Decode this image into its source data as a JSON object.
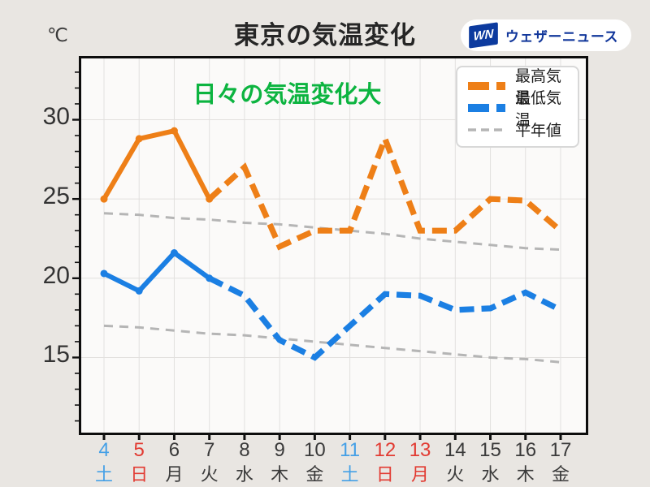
{
  "header": {
    "unit_label": "℃",
    "title": "東京の気温変化",
    "logo": {
      "mark": "WN",
      "name": "ウェザーニュース",
      "mark_bg": "#0c3a9e",
      "text_color": "#12379b"
    }
  },
  "annotation": {
    "text": "日々の気温変化大",
    "color": "#0cb440"
  },
  "legend": [
    {
      "label": "最高気温",
      "color": "#ee7f17",
      "thickness": "thick"
    },
    {
      "label": "最低気温",
      "color": "#1b7fe3",
      "thickness": "thick"
    },
    {
      "label": "平年値",
      "color": "#b5b5b5",
      "thickness": "thin"
    }
  ],
  "chart_data": {
    "type": "line",
    "title": "東京の気温変化",
    "y_unit": "℃",
    "x_dates": [
      4,
      5,
      6,
      7,
      8,
      9,
      10,
      11,
      12,
      13,
      14,
      15,
      16,
      17
    ],
    "x_days": [
      "土",
      "日",
      "月",
      "火",
      "水",
      "木",
      "金",
      "土",
      "日",
      "月",
      "火",
      "水",
      "木",
      "金"
    ],
    "x_day_types": [
      "sat",
      "sun",
      "wd",
      "wd",
      "wd",
      "wd",
      "wd",
      "sat",
      "sun",
      "holiday",
      "wd",
      "wd",
      "wd",
      "wd"
    ],
    "series": [
      {
        "name": "最高気温",
        "role": "temperature",
        "color": "#ee7f17",
        "solid_until_index": 3,
        "values": [
          25.0,
          28.8,
          29.3,
          25.0,
          27.0,
          22.0,
          23.0,
          23.0,
          28.8,
          23.0,
          23.0,
          25.0,
          24.9,
          23.0
        ]
      },
      {
        "name": "最低気温",
        "role": "temperature",
        "color": "#1b7fe3",
        "solid_until_index": 3,
        "values": [
          20.3,
          19.2,
          21.6,
          20.0,
          18.9,
          16.1,
          15.0,
          17.0,
          19.0,
          18.9,
          18.0,
          18.1,
          19.1,
          18.0
        ]
      },
      {
        "name": "平年値",
        "role": "normal",
        "color": "#b5b5b5",
        "values": [
          24.1,
          24.0,
          23.8,
          23.7,
          23.5,
          23.4,
          23.2,
          23.0,
          22.8,
          22.5,
          22.3,
          22.1,
          21.9,
          21.8
        ]
      },
      {
        "name": "平年値",
        "role": "normal",
        "color": "#b5b5b5",
        "values": [
          17.0,
          16.9,
          16.7,
          16.5,
          16.4,
          16.2,
          16.0,
          15.8,
          15.6,
          15.4,
          15.2,
          15.0,
          14.9,
          14.7
        ]
      }
    ],
    "yticks": [
      30,
      25,
      20,
      15
    ],
    "ylim": [
      10.3,
      33.9
    ],
    "grid": true,
    "legend_position": "top-right",
    "line_style_note": "solid with markers = observed (4-7), dashed = forecast (7-17)",
    "colors": {
      "grid": "#e2e0de",
      "axis": "#111111",
      "sat": "#45a0e6",
      "sun_holiday": "#e23b32",
      "weekday": "#3a3a3a"
    }
  }
}
